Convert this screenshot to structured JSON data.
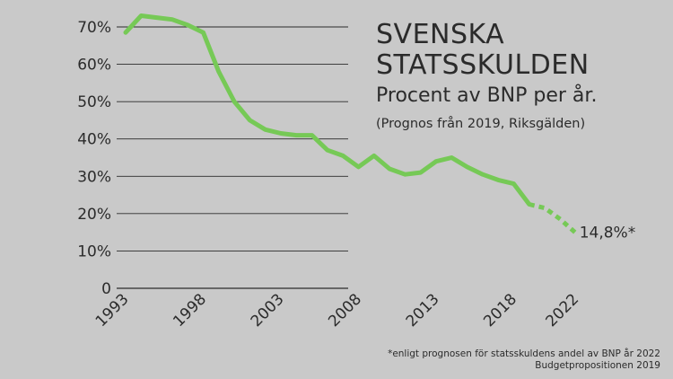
{
  "chart_data": {
    "type": "line",
    "title_lines": [
      "SVENSKA",
      "STATSSKULDEN"
    ],
    "subtitle": "Procent av BNP per år.",
    "source_note": "(Prognos från 2019, Riksgälden)",
    "y_ticks": [
      "70%",
      "60%",
      "50%",
      "40%",
      "30%",
      "20%",
      "10%",
      "0"
    ],
    "y_tick_values": [
      70,
      60,
      50,
      40,
      30,
      20,
      10,
      0
    ],
    "x_ticks": [
      "1993",
      "1998",
      "2003",
      "2008",
      "2013",
      "2018",
      "2022"
    ],
    "x_tick_values": [
      1993,
      1998,
      2003,
      2008,
      2013,
      2018,
      2022
    ],
    "ylim": [
      0,
      70
    ],
    "grid": true,
    "line_color": "#76c956",
    "series": [
      {
        "segment": "actual",
        "x": [
          1993,
          1994,
          1995,
          1996,
          1997,
          1998,
          1999,
          2000,
          2001,
          2002,
          2003,
          2004,
          2005,
          2006,
          2007,
          2008,
          2009,
          2010,
          2011,
          2012,
          2013,
          2014,
          2015,
          2016,
          2017,
          2018,
          2019
        ],
        "y": [
          68.5,
          73,
          72.5,
          72,
          70.5,
          68.5,
          58,
          50,
          45,
          42.5,
          41.5,
          41,
          41,
          37,
          35.5,
          32.5,
          35.5,
          32,
          30.5,
          31,
          34,
          35,
          32.5,
          30.5,
          29,
          28,
          22.5
        ]
      },
      {
        "segment": "forecast",
        "x": [
          2019,
          2020,
          2021,
          2022
        ],
        "y": [
          22.5,
          21.5,
          18.5,
          14.8
        ]
      }
    ],
    "end_label": "14,8%*"
  },
  "footnote": {
    "line1": "*enligt prognosen för statsskuldens andel av BNP år 2022",
    "line2": "Budgetpropositionen 2019"
  }
}
